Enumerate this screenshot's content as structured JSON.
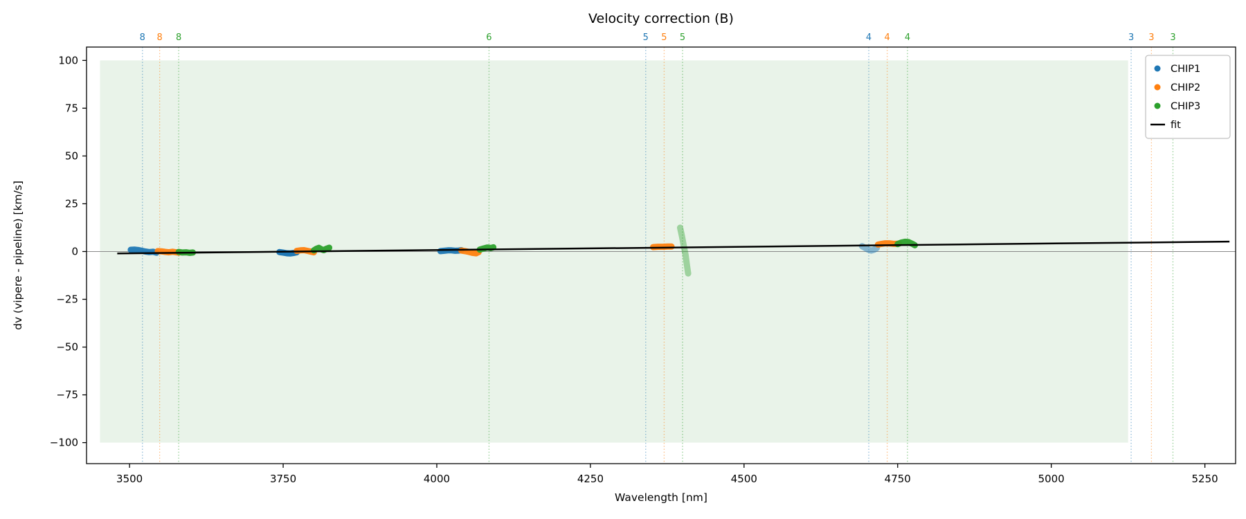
{
  "chart_data": {
    "type": "scatter",
    "title": "Velocity correction (B)",
    "xlabel": "Wavelength [nm]",
    "ylabel": "dv (vipere - pipeline) [km/s]",
    "xlim": [
      3430,
      5300
    ],
    "ylim": [
      -111,
      107
    ],
    "xticks": [
      3500,
      3750,
      4000,
      4250,
      4500,
      4750,
      5000,
      5250
    ],
    "xticklabels": [
      "3500",
      "3750",
      "4000",
      "4250",
      "4500",
      "4750",
      "5000",
      "5250"
    ],
    "yticks": [
      -100,
      -75,
      -50,
      -25,
      0,
      25,
      50,
      75,
      100
    ],
    "yticklabels": [
      "−100",
      "−75",
      "−50",
      "−25",
      "0",
      "25",
      "50",
      "75",
      "100"
    ],
    "grid": false,
    "zero_line_y": 0,
    "band": {
      "x0": 3452,
      "x1": 5125,
      "y0": -100,
      "y1": 100,
      "color": "#e9f3e9"
    },
    "fit_line": {
      "x": [
        3480,
        5290
      ],
      "y": [
        -1.0,
        5.2
      ]
    },
    "order_lines": [
      {
        "order": "8",
        "x": 3521,
        "series": "CHIP1"
      },
      {
        "order": "8",
        "x": 3549,
        "series": "CHIP2"
      },
      {
        "order": "8",
        "x": 3580,
        "series": "CHIP3"
      },
      {
        "order": "6",
        "x": 4085,
        "series": "CHIP3"
      },
      {
        "order": "5",
        "x": 4340,
        "series": "CHIP1"
      },
      {
        "order": "5",
        "x": 4370,
        "series": "CHIP2"
      },
      {
        "order": "5",
        "x": 4400,
        "series": "CHIP3"
      },
      {
        "order": "4",
        "x": 4703,
        "series": "CHIP1"
      },
      {
        "order": "4",
        "x": 4733,
        "series": "CHIP2"
      },
      {
        "order": "4",
        "x": 4766,
        "series": "CHIP3"
      },
      {
        "order": "3",
        "x": 5130,
        "series": "CHIP1"
      },
      {
        "order": "3",
        "x": 5163,
        "series": "CHIP2"
      },
      {
        "order": "3",
        "x": 5198,
        "series": "CHIP3"
      }
    ],
    "series": [
      {
        "name": "CHIP1",
        "color": "#1f77b4",
        "clusters": [
          {
            "alpha": 0.95,
            "points": [
              [
                3502,
                0.9
              ],
              [
                3508,
                1.0
              ],
              [
                3514,
                0.8
              ],
              [
                3520,
                0.4
              ],
              [
                3526,
                0.0
              ],
              [
                3532,
                -0.3
              ],
              [
                3538,
                -0.1
              ],
              [
                3544,
                -0.6
              ]
            ]
          },
          {
            "alpha": 1.0,
            "points": [
              [
                3744,
                -0.3
              ],
              [
                3750,
                -0.6
              ],
              [
                3756,
                -0.9
              ],
              [
                3762,
                -1.0
              ],
              [
                3768,
                -0.7
              ],
              [
                3772,
                -0.4
              ]
            ]
          },
          {
            "alpha": 0.95,
            "points": [
              [
                4006,
                0.2
              ],
              [
                4012,
                0.4
              ],
              [
                4018,
                0.6
              ],
              [
                4024,
                0.6
              ],
              [
                4030,
                0.4
              ],
              [
                4036,
                0.5
              ],
              [
                4040,
                0.7
              ]
            ]
          },
          {
            "alpha": 0.5,
            "points": [
              [
                4692,
                2.8
              ],
              [
                4697,
                1.9
              ],
              [
                4702,
                1.0
              ],
              [
                4707,
                0.5
              ],
              [
                4712,
                1.0
              ],
              [
                4716,
                1.8
              ]
            ]
          }
        ]
      },
      {
        "name": "CHIP2",
        "color": "#ff7f0e",
        "clusters": [
          {
            "alpha": 0.95,
            "points": [
              [
                3546,
                0.2
              ],
              [
                3552,
                0.1
              ],
              [
                3558,
                -0.2
              ],
              [
                3564,
                -0.4
              ],
              [
                3570,
                -0.1
              ],
              [
                3576,
                -0.4
              ],
              [
                3580,
                -0.6
              ]
            ]
          },
          {
            "alpha": 0.95,
            "points": [
              [
                3772,
                0.3
              ],
              [
                3778,
                0.6
              ],
              [
                3784,
                0.7
              ],
              [
                3790,
                0.3
              ],
              [
                3796,
                -0.1
              ],
              [
                3800,
                -0.4
              ]
            ]
          },
          {
            "alpha": 0.95,
            "points": [
              [
                4040,
                0.5
              ],
              [
                4046,
                0.2
              ],
              [
                4052,
                -0.2
              ],
              [
                4058,
                -0.7
              ],
              [
                4064,
                -0.9
              ],
              [
                4068,
                -0.3
              ]
            ]
          },
          {
            "alpha": 0.95,
            "points": [
              [
                4352,
                2.3
              ],
              [
                4360,
                2.5
              ],
              [
                4368,
                2.5
              ],
              [
                4376,
                2.6
              ],
              [
                4382,
                2.6
              ]
            ]
          },
          {
            "alpha": 0.95,
            "points": [
              [
                4718,
                3.6
              ],
              [
                4724,
                4.0
              ],
              [
                4730,
                4.3
              ],
              [
                4736,
                4.3
              ],
              [
                4742,
                4.1
              ],
              [
                4748,
                4.0
              ],
              [
                4752,
                4.2
              ]
            ]
          }
        ]
      },
      {
        "name": "CHIP3",
        "color": "#2ca02c",
        "clusters": [
          {
            "alpha": 0.95,
            "points": [
              [
                3580,
                -0.2
              ],
              [
                3586,
                -0.5
              ],
              [
                3592,
                -0.4
              ],
              [
                3598,
                -0.7
              ],
              [
                3603,
                -0.5
              ]
            ]
          },
          {
            "alpha": 0.95,
            "points": [
              [
                3800,
                0.6
              ],
              [
                3804,
                1.4
              ],
              [
                3808,
                1.9
              ],
              [
                3812,
                1.2
              ],
              [
                3816,
                0.7
              ],
              [
                3820,
                1.4
              ],
              [
                3825,
                2.0
              ]
            ]
          },
          {
            "alpha": 0.95,
            "points": [
              [
                4070,
                1.0
              ],
              [
                4076,
                1.6
              ],
              [
                4082,
                2.1
              ],
              [
                4088,
                1.8
              ],
              [
                4092,
                2.2
              ]
            ]
          },
          {
            "alpha": 0.4,
            "points": [
              [
                4396,
                12.5
              ],
              [
                4399,
                8.0
              ],
              [
                4402,
                3.0
              ],
              [
                4405,
                -2.0
              ],
              [
                4407,
                -7.0
              ],
              [
                4409,
                -11.5
              ]
            ]
          },
          {
            "alpha": 0.95,
            "points": [
              [
                4750,
                3.9
              ],
              [
                4756,
                4.7
              ],
              [
                4762,
                5.1
              ],
              [
                4768,
                4.9
              ],
              [
                4774,
                4.0
              ],
              [
                4778,
                3.3
              ]
            ]
          }
        ]
      }
    ],
    "legend": {
      "position": "upper right",
      "items": [
        {
          "label": "CHIP1",
          "marker": "dot",
          "color": "#1f77b4"
        },
        {
          "label": "CHIP2",
          "marker": "dot",
          "color": "#ff7f0e"
        },
        {
          "label": "CHIP3",
          "marker": "dot",
          "color": "#2ca02c"
        },
        {
          "label": "fit",
          "marker": "line",
          "color": "#000000"
        }
      ]
    },
    "colors": {
      "zero_line": "#888888",
      "spine": "#000000",
      "band": "#e9f3e9"
    }
  }
}
